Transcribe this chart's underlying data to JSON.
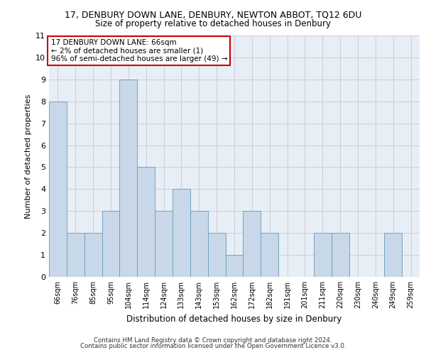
{
  "title1": "17, DENBURY DOWN LANE, DENBURY, NEWTON ABBOT, TQ12 6DU",
  "title2": "Size of property relative to detached houses in Denbury",
  "xlabel": "Distribution of detached houses by size in Denbury",
  "ylabel": "Number of detached properties",
  "categories": [
    "66sqm",
    "76sqm",
    "85sqm",
    "95sqm",
    "104sqm",
    "114sqm",
    "124sqm",
    "133sqm",
    "143sqm",
    "153sqm",
    "162sqm",
    "172sqm",
    "182sqm",
    "191sqm",
    "201sqm",
    "211sqm",
    "220sqm",
    "230sqm",
    "240sqm",
    "249sqm",
    "259sqm"
  ],
  "values": [
    8,
    2,
    2,
    3,
    9,
    5,
    3,
    4,
    3,
    2,
    1,
    3,
    2,
    0,
    0,
    2,
    2,
    0,
    0,
    2,
    0
  ],
  "bar_color": "#c8d8e8",
  "bar_edge_color": "#6699bb",
  "annotation_text": "17 DENBURY DOWN LANE: 66sqm\n← 2% of detached houses are smaller (1)\n96% of semi-detached houses are larger (49) →",
  "annotation_box_color": "#ffffff",
  "annotation_box_edge_color": "#cc0000",
  "ylim": [
    0,
    11
  ],
  "yticks": [
    0,
    1,
    2,
    3,
    4,
    5,
    6,
    7,
    8,
    9,
    10,
    11
  ],
  "grid_color": "#c8d0dc",
  "background_color": "#e8eef5",
  "footer1": "Contains HM Land Registry data © Crown copyright and database right 2024.",
  "footer2": "Contains public sector information licensed under the Open Government Licence v3.0."
}
